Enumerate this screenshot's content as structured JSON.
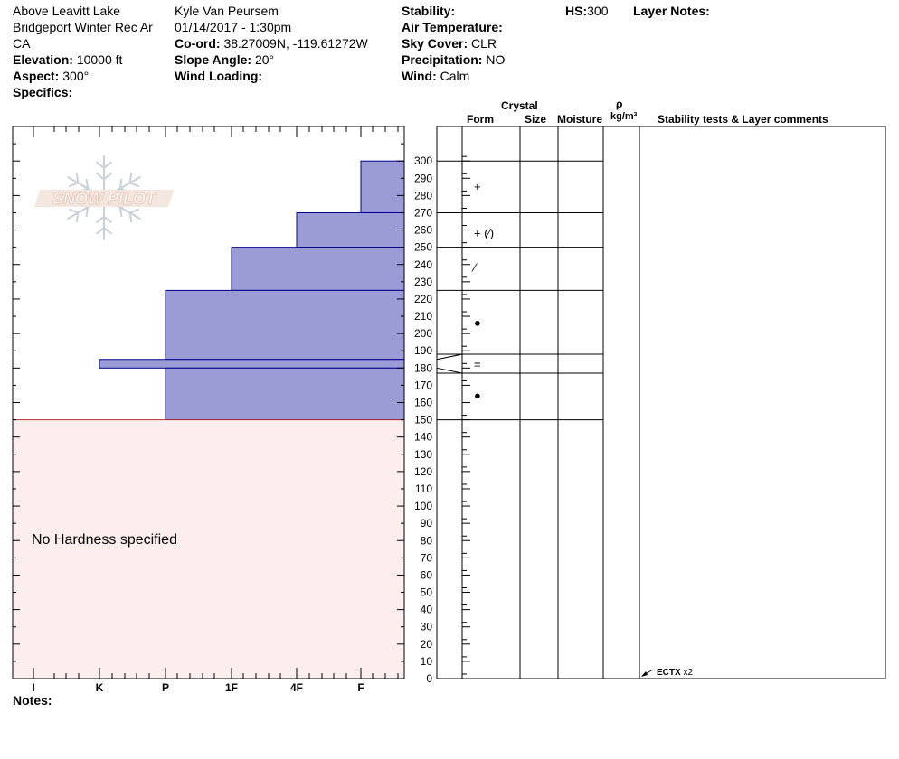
{
  "header": {
    "location": "Above Leavitt Lake",
    "area": "Bridgeport Winter Rec Ar",
    "state": "CA",
    "elevation_label": "Elevation:",
    "elevation_value": "10000 ft",
    "aspect_label": "Aspect:",
    "aspect_value": "300°",
    "specifics_label": "Specifics:",
    "observer": "Kyle Van Peursem",
    "datetime": "01/14/2017 - 1:30pm",
    "coord_label": "Co-ord:",
    "coord_value": "38.27009N, -119.61272W",
    "slope_label": "Slope Angle:",
    "slope_value": "20°",
    "wind_loading_label": "Wind Loading:",
    "stability_label": "Stability:",
    "air_temp_label": "Air Temperature:",
    "sky_label": "Sky Cover:",
    "sky_value": "CLR",
    "precip_label": "Precipitation:",
    "precip_value": "NO",
    "wind_label": "Wind:",
    "wind_value": "Calm",
    "hs_label": "HS:",
    "hs_value": "300",
    "layer_notes_label": "Layer Notes:"
  },
  "columns": {
    "crystal": "Crystal",
    "form": "Form",
    "size": "Size",
    "moisture": "Moisture",
    "rho": "ρ",
    "density_unit": "kg/m³",
    "stability": "Stability tests & Layer comments"
  },
  "logo_text": "SNOW PILOT",
  "no_hardness": "No Hardness specified",
  "notes_label": "Notes:",
  "stability_test": {
    "label": "ECTX",
    "count": "x2",
    "depth": 0
  },
  "colors": {
    "hardness_fill": "#9b9bd6",
    "hardness_stroke": "#00008b",
    "no_hardness_fill": "#fdeeee",
    "no_hardness_stroke": "#b03030"
  },
  "chart_data": {
    "type": "bar",
    "orientation": "horizontal",
    "x_categories": [
      "I",
      "K",
      "P",
      "1F",
      "4F",
      "F"
    ],
    "y_range": [
      0,
      300
    ],
    "y_ticks": [
      0,
      10,
      20,
      30,
      40,
      50,
      60,
      70,
      80,
      90,
      100,
      110,
      120,
      130,
      140,
      150,
      160,
      170,
      180,
      190,
      200,
      210,
      220,
      230,
      240,
      250,
      260,
      270,
      280,
      290,
      300
    ],
    "hardness_layers": [
      {
        "top": 300,
        "bottom": 270,
        "hardness": "F"
      },
      {
        "top": 270,
        "bottom": 250,
        "hardness": "4F"
      },
      {
        "top": 250,
        "bottom": 225,
        "hardness": "1F"
      },
      {
        "top": 225,
        "bottom": 185,
        "hardness": "P"
      },
      {
        "top": 185,
        "bottom": 180,
        "hardness": "K"
      },
      {
        "top": 180,
        "bottom": 150,
        "hardness": "P"
      }
    ],
    "no_hardness_range": [
      0,
      150
    ],
    "layer_boundaries": [
      300,
      270,
      250,
      225,
      188,
      177,
      150
    ],
    "crystal_forms": [
      {
        "depth": 285,
        "form": "+"
      },
      {
        "depth": 258,
        "form": "+ (⁄)"
      },
      {
        "depth": 238,
        "form": "⁄"
      },
      {
        "depth": 206,
        "form": "●"
      },
      {
        "depth": 182,
        "form": "="
      },
      {
        "depth": 164,
        "form": "●"
      }
    ]
  }
}
